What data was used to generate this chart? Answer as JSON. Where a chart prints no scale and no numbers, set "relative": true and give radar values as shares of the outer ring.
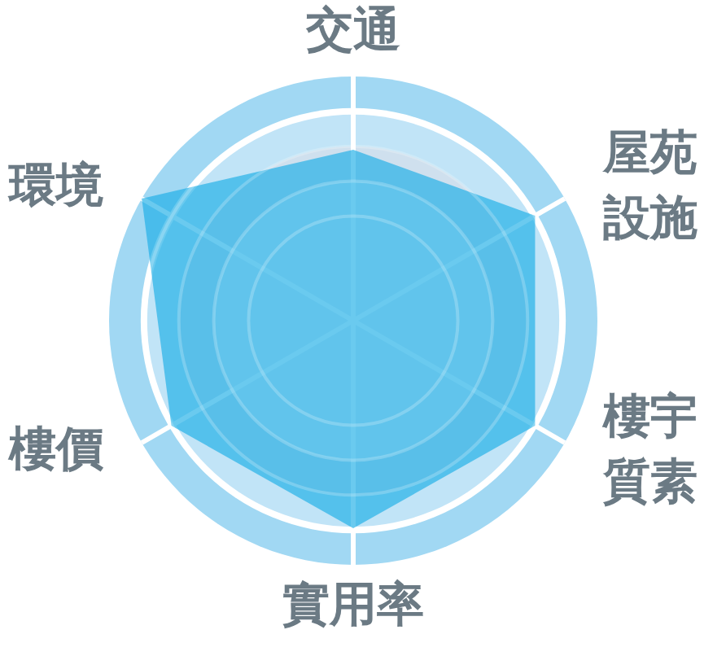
{
  "chart_data": {
    "type": "radar",
    "categories": [
      "交通",
      "屋苑設施",
      "樓宇質素",
      "實用率",
      "樓價",
      "環境"
    ],
    "series": [
      {
        "color": "#1aaee6",
        "values": [
          0.7,
          0.86,
          0.86,
          0.85,
          0.86,
          1
        ]
      }
    ],
    "relative": true,
    "grid": true
  }
}
